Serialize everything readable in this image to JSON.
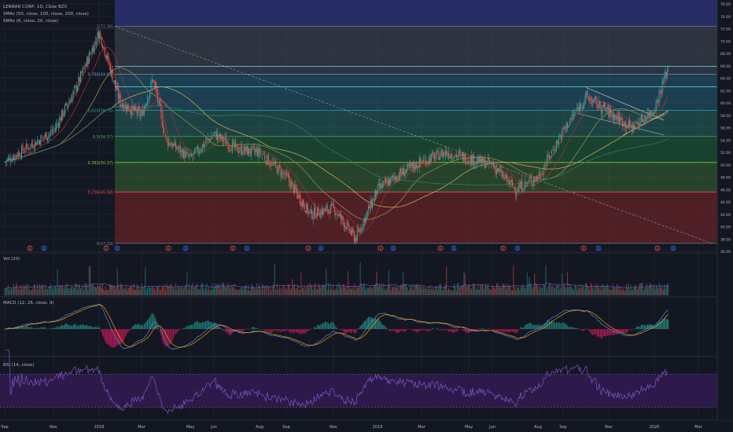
{
  "header": {
    "symbol_line": "LENNAR CORP, 1D, Cboe BZX",
    "study1": "SMAs (50, close, 100, close, 200, close)",
    "study2": "SMAs (6, close, 20, close)"
  },
  "price_axis": {
    "ticks": [
      "76.00",
      "74.00",
      "72.00",
      "70.00",
      "68.00",
      "66.00",
      "64.00",
      "62.00",
      "60.00",
      "58.00",
      "56.00",
      "54.00",
      "52.00",
      "50.00",
      "48.00",
      "46.00",
      "44.00",
      "42.00",
      "40.00",
      "38.00",
      "36.00"
    ],
    "current_price_label": "65.88"
  },
  "time_axis": {
    "labels": [
      "Sep",
      "Nov",
      "2018",
      "Mar",
      "May",
      "Jun",
      "Aug",
      "Sep",
      "Nov",
      "2019",
      "Mar",
      "May",
      "Jun",
      "Aug",
      "Sep",
      "Nov",
      "2020",
      "Mar"
    ]
  },
  "fib_labels": [
    "1(72.38)",
    "0.786(64.62)",
    "0.618(58.78)",
    "0.5(54.57)",
    "0.382(50.37)",
    "0.236(45.58)",
    "0(37.29)"
  ],
  "event_markers": [
    "E",
    "D",
    "E",
    "D",
    "E",
    "D",
    "E",
    "D",
    "E",
    "D",
    "E",
    "D",
    "E",
    "D",
    "E",
    "D",
    "E",
    "D",
    "E",
    "D",
    "E",
    "D",
    "E"
  ],
  "panels": {
    "vol": {
      "label": "Vol (20)",
      "ticks": [
        "30.000M",
        "20.000M",
        "10.000M",
        "0"
      ]
    },
    "macd": {
      "label": "MACD (12, 26, close, 9)",
      "ticks": [
        "2.00",
        "0.00",
        "-2.00"
      ]
    },
    "rsi": {
      "label": "RSI (14, close)",
      "ticks": [
        "80.00",
        "60.00",
        "40.00",
        "20.00"
      ]
    }
  },
  "colors": {
    "background": "#131722",
    "up_candle": "#26a69a",
    "down_candle": "#ef5350",
    "fib_top_band": "#2a2e69",
    "fib_green": "#1b4a3a",
    "fib_red": "#5a1e24",
    "sma_red": "#d32f2f",
    "sma_olive": "#8d8c4b",
    "sma_green": "#2e7d5b",
    "rsi_band": "#2d1a4a",
    "macd_line": "#4a90e2"
  },
  "chart_data": {
    "type": "candlestick",
    "title": "LENNAR CORP, 1D, Cboe BZX",
    "x_labels": [
      "Sep",
      "Nov",
      "2018",
      "Mar",
      "May",
      "Jun",
      "Aug",
      "Sep",
      "Nov",
      "2019",
      "Mar",
      "May",
      "Jun",
      "Aug",
      "Sep",
      "Nov",
      "2020",
      "Mar"
    ],
    "close_path": [
      {
        "x": "2017-09",
        "y": 50.5
      },
      {
        "x": "2017-11",
        "y": 55.5
      },
      {
        "x": "2017-12",
        "y": 62.5
      },
      {
        "x": "2018-01",
        "y": 71.5
      },
      {
        "x": "2018-02",
        "y": 60.0
      },
      {
        "x": "2018-03",
        "y": 58.0
      },
      {
        "x": "2018-03-15",
        "y": 64.0
      },
      {
        "x": "2018-04",
        "y": 54.0
      },
      {
        "x": "2018-05",
        "y": 51.0
      },
      {
        "x": "2018-06",
        "y": 55.0
      },
      {
        "x": "2018-07",
        "y": 52.5
      },
      {
        "x": "2018-08",
        "y": 52.0
      },
      {
        "x": "2018-09",
        "y": 48.0
      },
      {
        "x": "2018-10",
        "y": 42.0
      },
      {
        "x": "2018-11",
        "y": 43.0
      },
      {
        "x": "2018-12",
        "y": 38.0
      },
      {
        "x": "2019-01",
        "y": 46.0
      },
      {
        "x": "2019-02",
        "y": 48.5
      },
      {
        "x": "2019-03",
        "y": 50.5
      },
      {
        "x": "2019-04",
        "y": 52.0
      },
      {
        "x": "2019-05",
        "y": 51.0
      },
      {
        "x": "2019-06",
        "y": 50.0
      },
      {
        "x": "2019-07",
        "y": 46.0
      },
      {
        "x": "2019-08",
        "y": 48.0
      },
      {
        "x": "2019-09",
        "y": 55.5
      },
      {
        "x": "2019-10",
        "y": 61.0
      },
      {
        "x": "2019-11",
        "y": 58.5
      },
      {
        "x": "2019-12",
        "y": 56.0
      },
      {
        "x": "2020-01",
        "y": 59.0
      },
      {
        "x": "2020-01-20",
        "y": 65.9
      }
    ],
    "fib_levels": [
      {
        "label": "1(72.38)",
        "value": 72.38
      },
      {
        "label": "0.786(64.62)",
        "value": 64.62
      },
      {
        "label": "0.618(58.78)",
        "value": 58.78
      },
      {
        "label": "0.5(54.57)",
        "value": 54.57
      },
      {
        "label": "0.382(50.37)",
        "value": 50.37
      },
      {
        "label": "0.236(45.58)",
        "value": 45.58
      },
      {
        "label": "0(37.29)",
        "value": 37.29
      }
    ],
    "horizontal_lines": [
      65.9,
      62.6
    ],
    "ylim": [
      35,
      77
    ],
    "panels": [
      "Vol (20)",
      "MACD (12, 26, close, 9)",
      "RSI (14, close)"
    ]
  }
}
